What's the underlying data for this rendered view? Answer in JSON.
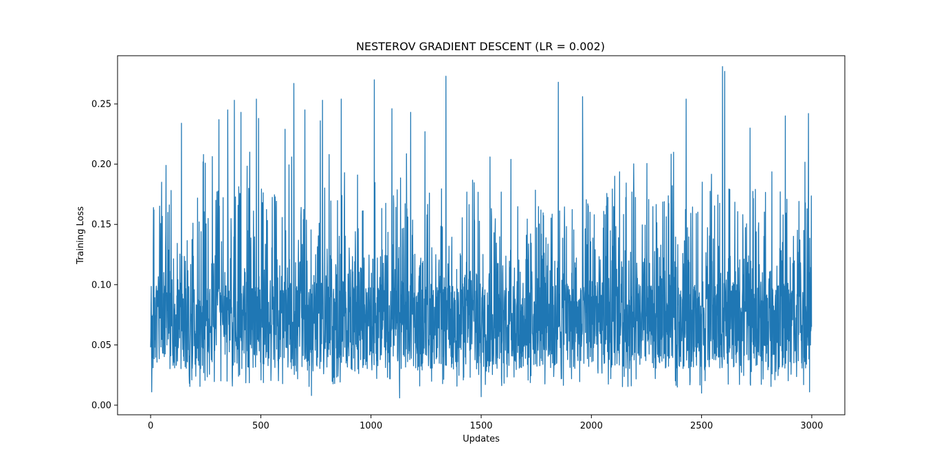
{
  "chart_data": {
    "type": "line",
    "title": "NESTEROV GRADIENT DESCENT (LR = 0.002)",
    "xlabel": "Updates",
    "ylabel": "Training Loss",
    "xlim": [
      -150,
      3150
    ],
    "ylim": [
      -0.008,
      0.29
    ],
    "xticks": [
      0,
      500,
      1000,
      1500,
      2000,
      2500,
      3000
    ],
    "xtick_labels": [
      "0",
      "500",
      "1000",
      "1500",
      "2000",
      "2500",
      "3000"
    ],
    "yticks": [
      0.0,
      0.05,
      0.1,
      0.15,
      0.2,
      0.25
    ],
    "ytick_labels": [
      "0.00",
      "0.05",
      "0.10",
      "0.15",
      "0.20",
      "0.25"
    ],
    "grid": false,
    "legend": "none",
    "line_color": "#1f77b4",
    "series": [
      {
        "n_points": 3000,
        "x_start": 0,
        "x_end": 2999,
        "baseline": 0.065,
        "min": 0.006,
        "max": 0.281,
        "peaks": [
          {
            "x": 15,
            "y": 0.162
          },
          {
            "x": 50,
            "y": 0.185
          },
          {
            "x": 70,
            "y": 0.199
          },
          {
            "x": 140,
            "y": 0.234
          },
          {
            "x": 240,
            "y": 0.208
          },
          {
            "x": 310,
            "y": 0.237
          },
          {
            "x": 350,
            "y": 0.245
          },
          {
            "x": 380,
            "y": 0.253
          },
          {
            "x": 410,
            "y": 0.243
          },
          {
            "x": 450,
            "y": 0.21
          },
          {
            "x": 480,
            "y": 0.254
          },
          {
            "x": 490,
            "y": 0.238
          },
          {
            "x": 610,
            "y": 0.229
          },
          {
            "x": 650,
            "y": 0.267
          },
          {
            "x": 700,
            "y": 0.245
          },
          {
            "x": 770,
            "y": 0.236
          },
          {
            "x": 780,
            "y": 0.253
          },
          {
            "x": 810,
            "y": 0.208
          },
          {
            "x": 865,
            "y": 0.254
          },
          {
            "x": 1015,
            "y": 0.27
          },
          {
            "x": 1095,
            "y": 0.246
          },
          {
            "x": 1180,
            "y": 0.243
          },
          {
            "x": 1245,
            "y": 0.227
          },
          {
            "x": 1340,
            "y": 0.273
          },
          {
            "x": 1540,
            "y": 0.206
          },
          {
            "x": 1635,
            "y": 0.204
          },
          {
            "x": 1850,
            "y": 0.268
          },
          {
            "x": 1960,
            "y": 0.256
          },
          {
            "x": 2430,
            "y": 0.254
          },
          {
            "x": 2595,
            "y": 0.281
          },
          {
            "x": 2605,
            "y": 0.277
          },
          {
            "x": 2720,
            "y": 0.23
          },
          {
            "x": 2880,
            "y": 0.24
          },
          {
            "x": 2985,
            "y": 0.242
          }
        ],
        "troughs": [
          {
            "x": 5,
            "y": 0.011
          },
          {
            "x": 730,
            "y": 0.008
          },
          {
            "x": 1130,
            "y": 0.006
          },
          {
            "x": 1500,
            "y": 0.007
          },
          {
            "x": 2500,
            "y": 0.01
          },
          {
            "x": 2990,
            "y": 0.011
          }
        ]
      }
    ]
  }
}
